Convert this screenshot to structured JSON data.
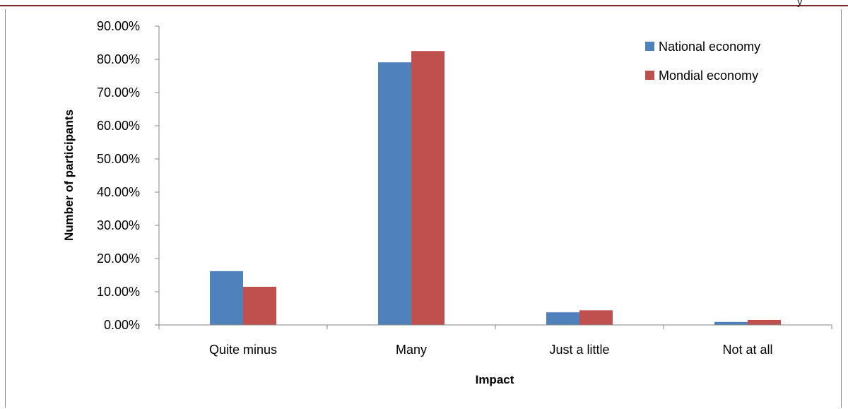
{
  "page": {
    "corner_mark": "y"
  },
  "chart_data": {
    "type": "bar",
    "categories": [
      "Quite minus",
      "Many",
      "Just a little",
      "Not at all"
    ],
    "series": [
      {
        "name": "National economy",
        "values": [
          16.2,
          79.1,
          3.8,
          0.9
        ],
        "color": "#4f81bd"
      },
      {
        "name": "Mondial economy",
        "values": [
          11.5,
          82.5,
          4.4,
          1.5
        ],
        "color": "#c0504d"
      }
    ],
    "xlabel": "Impact",
    "ylabel": "Number of participants",
    "ylim": [
      0,
      90
    ],
    "yticks": [
      "0.00%",
      "10.00%",
      "20.00%",
      "30.00%",
      "40.00%",
      "50.00%",
      "60.00%",
      "70.00%",
      "80.00%",
      "90.00%"
    ],
    "unit": "%",
    "grid": false,
    "legend": "top-right"
  }
}
